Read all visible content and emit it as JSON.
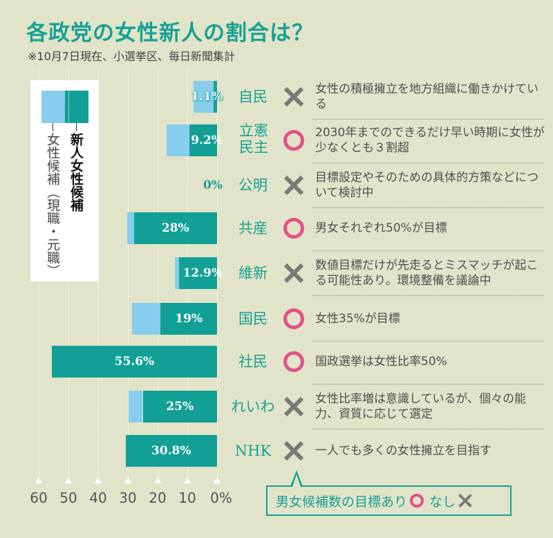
{
  "title": "各政党の女性新人の割合は？",
  "subtitle": "※10月7日現在、小選挙区、毎日新聞集計",
  "legend": {
    "new": "新人女性候補",
    "incumbent": "女性候補（現職・元職）"
  },
  "key": {
    "label_yes": "男女候補数の目標あり",
    "label_no": "なし"
  },
  "colors": {
    "new": "#12a096",
    "incumbent": "#86cdee",
    "circle": "#e4508a",
    "cross": "#7a7a7a",
    "accent": "#17a095"
  },
  "chart_data": {
    "type": "bar",
    "orientation": "horizontal-right-aligned",
    "stacked": true,
    "xlim": [
      0,
      60
    ],
    "ticks": [
      "60",
      "50",
      "40",
      "30",
      "20",
      "10",
      "0%"
    ],
    "tick_values": [
      60,
      50,
      40,
      30,
      20,
      10,
      0
    ],
    "grid": true,
    "categories": [
      "自民",
      "立憲民主",
      "公明",
      "共産",
      "維新",
      "国民",
      "社民",
      "れいわ",
      "NHK"
    ],
    "series": [
      {
        "name": "新人女性候補",
        "values": [
          1.1,
          9.2,
          0,
          28,
          12.9,
          19,
          55.6,
          25,
          30.8
        ]
      },
      {
        "name": "女性候補（現職・元職）",
        "values": [
          6.8,
          7.8,
          0,
          2.2,
          1.2,
          9.5,
          0,
          4.8,
          0
        ]
      }
    ],
    "data_labels": [
      "1.1%",
      "9.2%",
      "0%",
      "28%",
      "12.9%",
      "19%",
      "55.6%",
      "25%",
      "30.8%"
    ]
  },
  "parties": [
    {
      "name": "自民",
      "goal": "cross",
      "policy": "女性の積極擁立を地方組織に働きかけている"
    },
    {
      "name": "立憲民主",
      "goal": "circle",
      "policy": "2030年までのできるだけ早い時期に女性が少なくとも３割超"
    },
    {
      "name": "公明",
      "goal": "cross",
      "policy": "目標設定やそのための具体的方策などについて検討中"
    },
    {
      "name": "共産",
      "goal": "circle",
      "policy": "男女それぞれ50%が目標"
    },
    {
      "name": "維新",
      "goal": "cross",
      "policy": "数値目標だけが先走るとミスマッチが起こる可能性あり。環境整備を議論中"
    },
    {
      "name": "国民",
      "goal": "circle",
      "policy": "女性35%が目標"
    },
    {
      "name": "社民",
      "goal": "circle",
      "policy": "国政選挙は女性比率50%"
    },
    {
      "name": "れいわ",
      "goal": "cross",
      "policy": "女性比率増は意識しているが、個々の能力、資質に応じて選定"
    },
    {
      "name": "NHK",
      "goal": "cross",
      "policy": "一人でも多くの女性擁立を目指す"
    }
  ]
}
